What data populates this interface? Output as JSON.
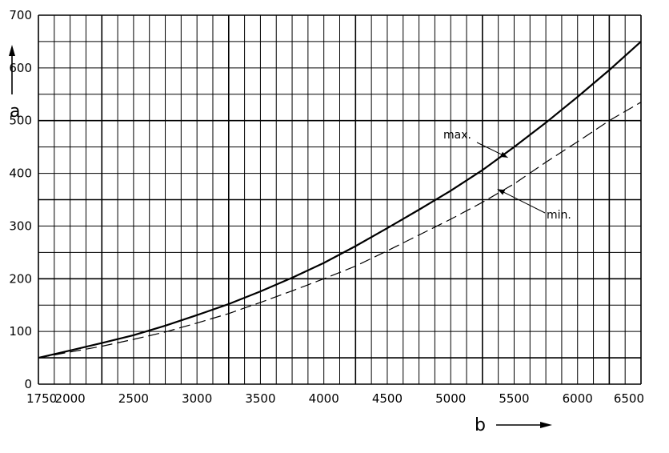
{
  "chart_data": {
    "type": "line",
    "xlabel": "b",
    "ylabel": "a",
    "xlim": [
      1750,
      6500
    ],
    "ylim": [
      0,
      700
    ],
    "grid": true,
    "x_ticks": [
      {
        "value": 1750,
        "label": "1750"
      },
      {
        "value": 2000,
        "label": "2000"
      },
      {
        "value": 2500,
        "label": "2500"
      },
      {
        "value": 3000,
        "label": "3000"
      },
      {
        "value": 3500,
        "label": "3500"
      },
      {
        "value": 4000,
        "label": "4000"
      },
      {
        "value": 4500,
        "label": "4500"
      },
      {
        "value": 5000,
        "label": "5000"
      },
      {
        "value": 5500,
        "label": "5500"
      },
      {
        "value": 6000,
        "label": "6000"
      },
      {
        "value": 6500,
        "label": "6500"
      }
    ],
    "y_ticks": [
      {
        "value": 0,
        "label": "0"
      },
      {
        "value": 100,
        "label": "100"
      },
      {
        "value": 200,
        "label": "200"
      },
      {
        "value": 300,
        "label": "300"
      },
      {
        "value": 400,
        "label": "400"
      },
      {
        "value": 500,
        "label": "500"
      },
      {
        "value": 600,
        "label": "600"
      },
      {
        "value": 700,
        "label": "700"
      }
    ],
    "major_gridlines_x": [
      2250,
      3250,
      4250,
      5250,
      6250
    ],
    "major_gridlines_y": [
      50,
      200,
      350,
      500
    ],
    "series": [
      {
        "name": "max.",
        "style": "solid",
        "points": [
          [
            1750,
            50
          ],
          [
            2000,
            64
          ],
          [
            2250,
            78
          ],
          [
            2500,
            93
          ],
          [
            2750,
            111
          ],
          [
            3000,
            131
          ],
          [
            3250,
            152
          ],
          [
            3500,
            176
          ],
          [
            3750,
            202
          ],
          [
            4000,
            230
          ],
          [
            4250,
            262
          ],
          [
            4500,
            296
          ],
          [
            4750,
            331
          ],
          [
            5000,
            367
          ],
          [
            5250,
            406
          ],
          [
            5500,
            450
          ],
          [
            5750,
            496
          ],
          [
            6000,
            545
          ],
          [
            6250,
            596
          ],
          [
            6500,
            650
          ]
        ]
      },
      {
        "name": "min.",
        "style": "dashed",
        "points": [
          [
            1750,
            50
          ],
          [
            2000,
            61
          ],
          [
            2250,
            72
          ],
          [
            2500,
            85
          ],
          [
            2750,
            99
          ],
          [
            3000,
            116
          ],
          [
            3250,
            134
          ],
          [
            3500,
            155
          ],
          [
            3750,
            177
          ],
          [
            4000,
            200
          ],
          [
            4250,
            224
          ],
          [
            4500,
            253
          ],
          [
            4750,
            283
          ],
          [
            5000,
            313
          ],
          [
            5250,
            345
          ],
          [
            5500,
            380
          ],
          [
            5750,
            421
          ],
          [
            6000,
            460
          ],
          [
            6250,
            500
          ],
          [
            6500,
            535
          ]
        ]
      }
    ],
    "annotations": [
      {
        "text": "max.",
        "series": "max.",
        "x": 5450,
        "y": 430
      },
      {
        "text": "min.",
        "series": "min.",
        "x": 5350,
        "y": 370
      }
    ]
  }
}
